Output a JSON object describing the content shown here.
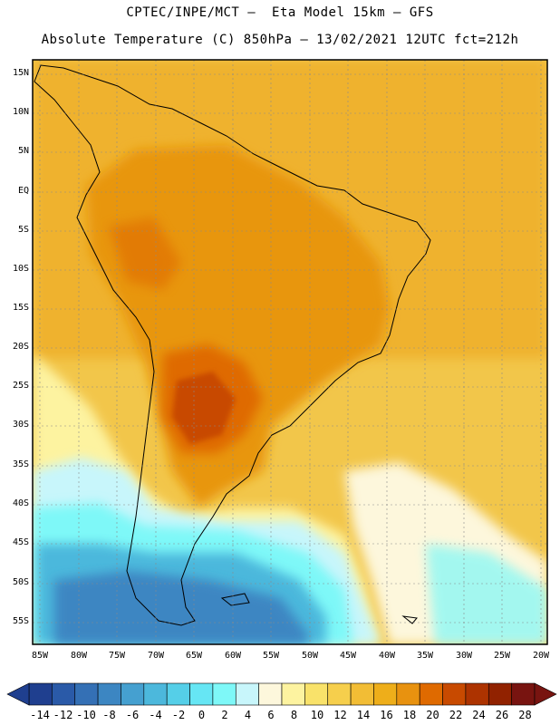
{
  "header": {
    "line1": "CPTEC/INPE/MCT –  Eta Model 15km – GFS",
    "line2": "Absolute Temperature (C) 850hPa – 13/02/2021 12UTC fct=212h"
  },
  "map": {
    "lat_labels": [
      "15N",
      "10N",
      "5N",
      "EQ",
      "5S",
      "10S",
      "15S",
      "20S",
      "25S",
      "30S",
      "35S",
      "40S",
      "45S",
      "50S",
      "55S"
    ],
    "lon_labels": [
      "85W",
      "80W",
      "75W",
      "70W",
      "65W",
      "60W",
      "55W",
      "50W",
      "45W",
      "40W",
      "35W",
      "30W",
      "25W",
      "20W"
    ],
    "gridlines": true
  },
  "colorbar": {
    "labels": [
      "-14",
      "-12",
      "-10",
      "-8",
      "-6",
      "-4",
      "-2",
      "0",
      "2",
      "4",
      "6",
      "8",
      "10",
      "12",
      "14",
      "16",
      "18",
      "20",
      "22",
      "24",
      "26",
      "28"
    ],
    "colors": [
      "#1f3f8f",
      "#2a5aa8",
      "#3470b5",
      "#3c86c2",
      "#45a0d0",
      "#4cb8dc",
      "#55cfe8",
      "#66e6f4",
      "#7ef8f8",
      "#c8f6fb",
      "#fdf7dc",
      "#fdf3a0",
      "#f9e26a",
      "#f6cf4c",
      "#f2bd35",
      "#eeae1a",
      "#e8920f",
      "#df6a00",
      "#c84a00",
      "#ad3300",
      "#912200",
      "#781410"
    ]
  }
}
